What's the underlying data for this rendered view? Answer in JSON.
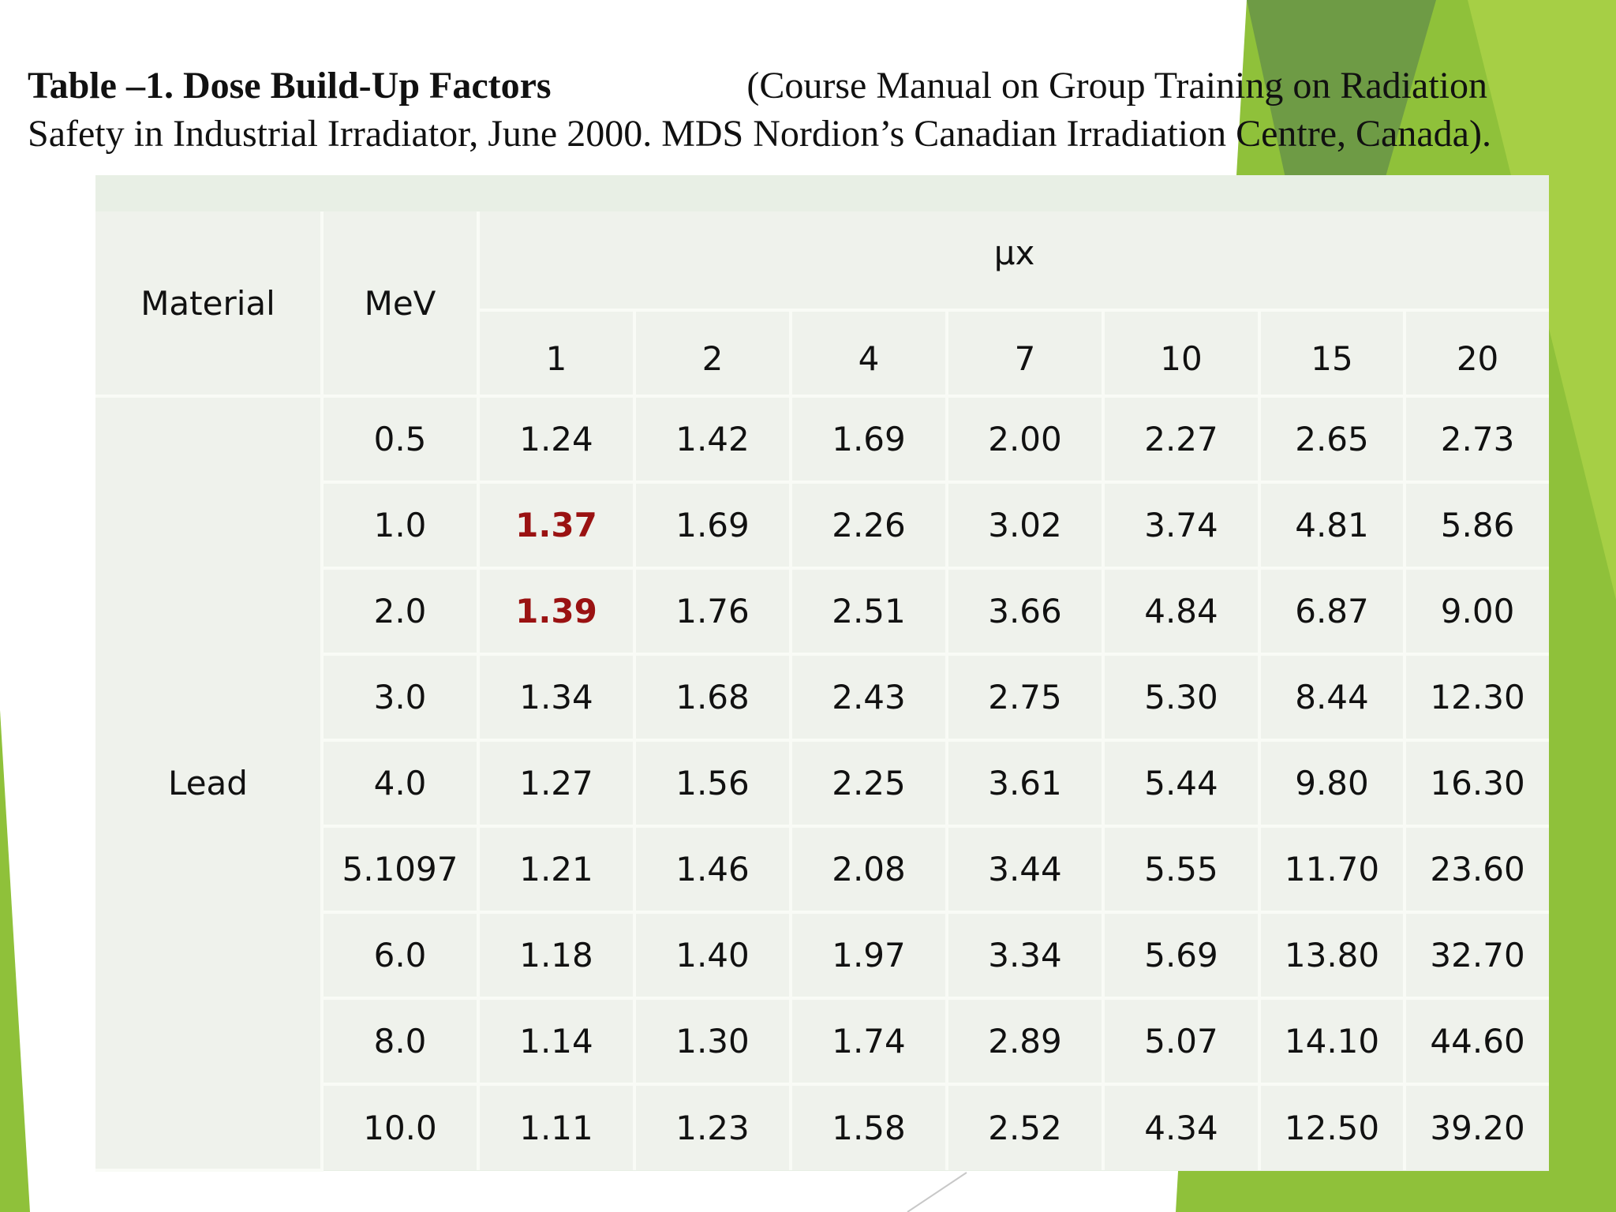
{
  "caption": {
    "line1_bold": "Table –1. Dose Build-Up Factors",
    "line1_rest": "(Course Manual on Group Training on Radiation",
    "line2": "Safety in Industrial Irradiator, June 2000. MDS Nordion’s Canadian Irradiation Centre, Canada)."
  },
  "table": {
    "header": {
      "material": "Material",
      "mev": "MeV",
      "mux": "μx",
      "columns": [
        "1",
        "2",
        "4",
        "7",
        "10",
        "15",
        "20"
      ]
    },
    "material": "Lead",
    "rows": [
      {
        "mev": "0.5",
        "values": [
          "1.24",
          "1.42",
          "1.69",
          "2.00",
          "2.27",
          "2.65",
          "2.73"
        ]
      },
      {
        "mev": "1.0",
        "values": [
          "1.37",
          "1.69",
          "2.26",
          "3.02",
          "3.74",
          "4.81",
          "5.86"
        ]
      },
      {
        "mev": "2.0",
        "values": [
          "1.39",
          "1.76",
          "2.51",
          "3.66",
          "4.84",
          "6.87",
          "9.00"
        ]
      },
      {
        "mev": "3.0",
        "values": [
          "1.34",
          "1.68",
          "2.43",
          "2.75",
          "5.30",
          "8.44",
          "12.30"
        ]
      },
      {
        "mev": "4.0",
        "values": [
          "1.27",
          "1.56",
          "2.25",
          "3.61",
          "5.44",
          "9.80",
          "16.30"
        ]
      },
      {
        "mev": "5.1097",
        "values": [
          "1.21",
          "1.46",
          "2.08",
          "3.44",
          "5.55",
          "11.70",
          "23.60"
        ]
      },
      {
        "mev": "6.0",
        "values": [
          "1.18",
          "1.40",
          "1.97",
          "3.34",
          "5.69",
          "13.80",
          "32.70"
        ]
      },
      {
        "mev": "8.0",
        "values": [
          "1.14",
          "1.30",
          "1.74",
          "2.89",
          "5.07",
          "14.10",
          "44.60"
        ]
      },
      {
        "mev": "10.0",
        "values": [
          "1.11",
          "1.23",
          "1.58",
          "2.52",
          "4.34",
          "12.50",
          "39.20"
        ]
      }
    ],
    "highlight_color": "#9a1212"
  },
  "theme": {
    "accent_green": "#8fc13a",
    "dark_green": "#6e9b45"
  }
}
